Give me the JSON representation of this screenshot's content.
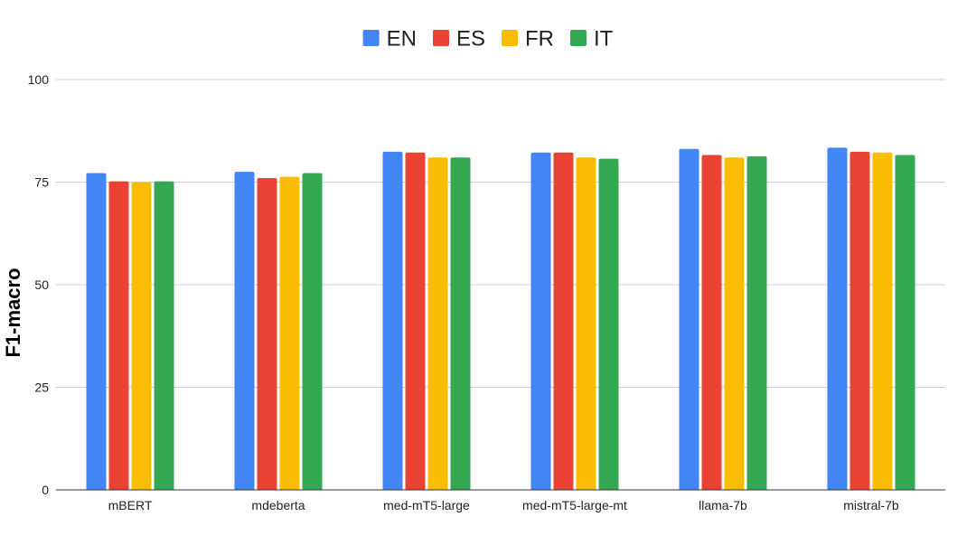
{
  "chart_data": {
    "type": "bar",
    "categories": [
      "mBERT",
      "mdeberta",
      "med-mT5-large",
      "med-mT5-large-mt",
      "llama-7b",
      "mistral-7b"
    ],
    "series": [
      {
        "name": "EN",
        "color": "#4285F4",
        "values": [
          77.2,
          77.5,
          82.4,
          82.2,
          83.1,
          83.4
        ]
      },
      {
        "name": "ES",
        "color": "#EA4335",
        "values": [
          75.2,
          76.0,
          82.2,
          82.2,
          81.6,
          82.4
        ]
      },
      {
        "name": "FR",
        "color": "#FBBC04",
        "values": [
          74.9,
          76.3,
          81.0,
          81.0,
          81.0,
          82.2
        ]
      },
      {
        "name": "IT",
        "color": "#34A853",
        "values": [
          75.2,
          77.2,
          81.0,
          80.7,
          81.3,
          81.6
        ]
      }
    ],
    "xlabel": "",
    "ylabel": "F1-macro",
    "ylim": [
      0,
      100
    ],
    "yticks": [
      "0",
      "25",
      "50",
      "75",
      "100"
    ],
    "grid": true,
    "legend_position": "top-center"
  }
}
